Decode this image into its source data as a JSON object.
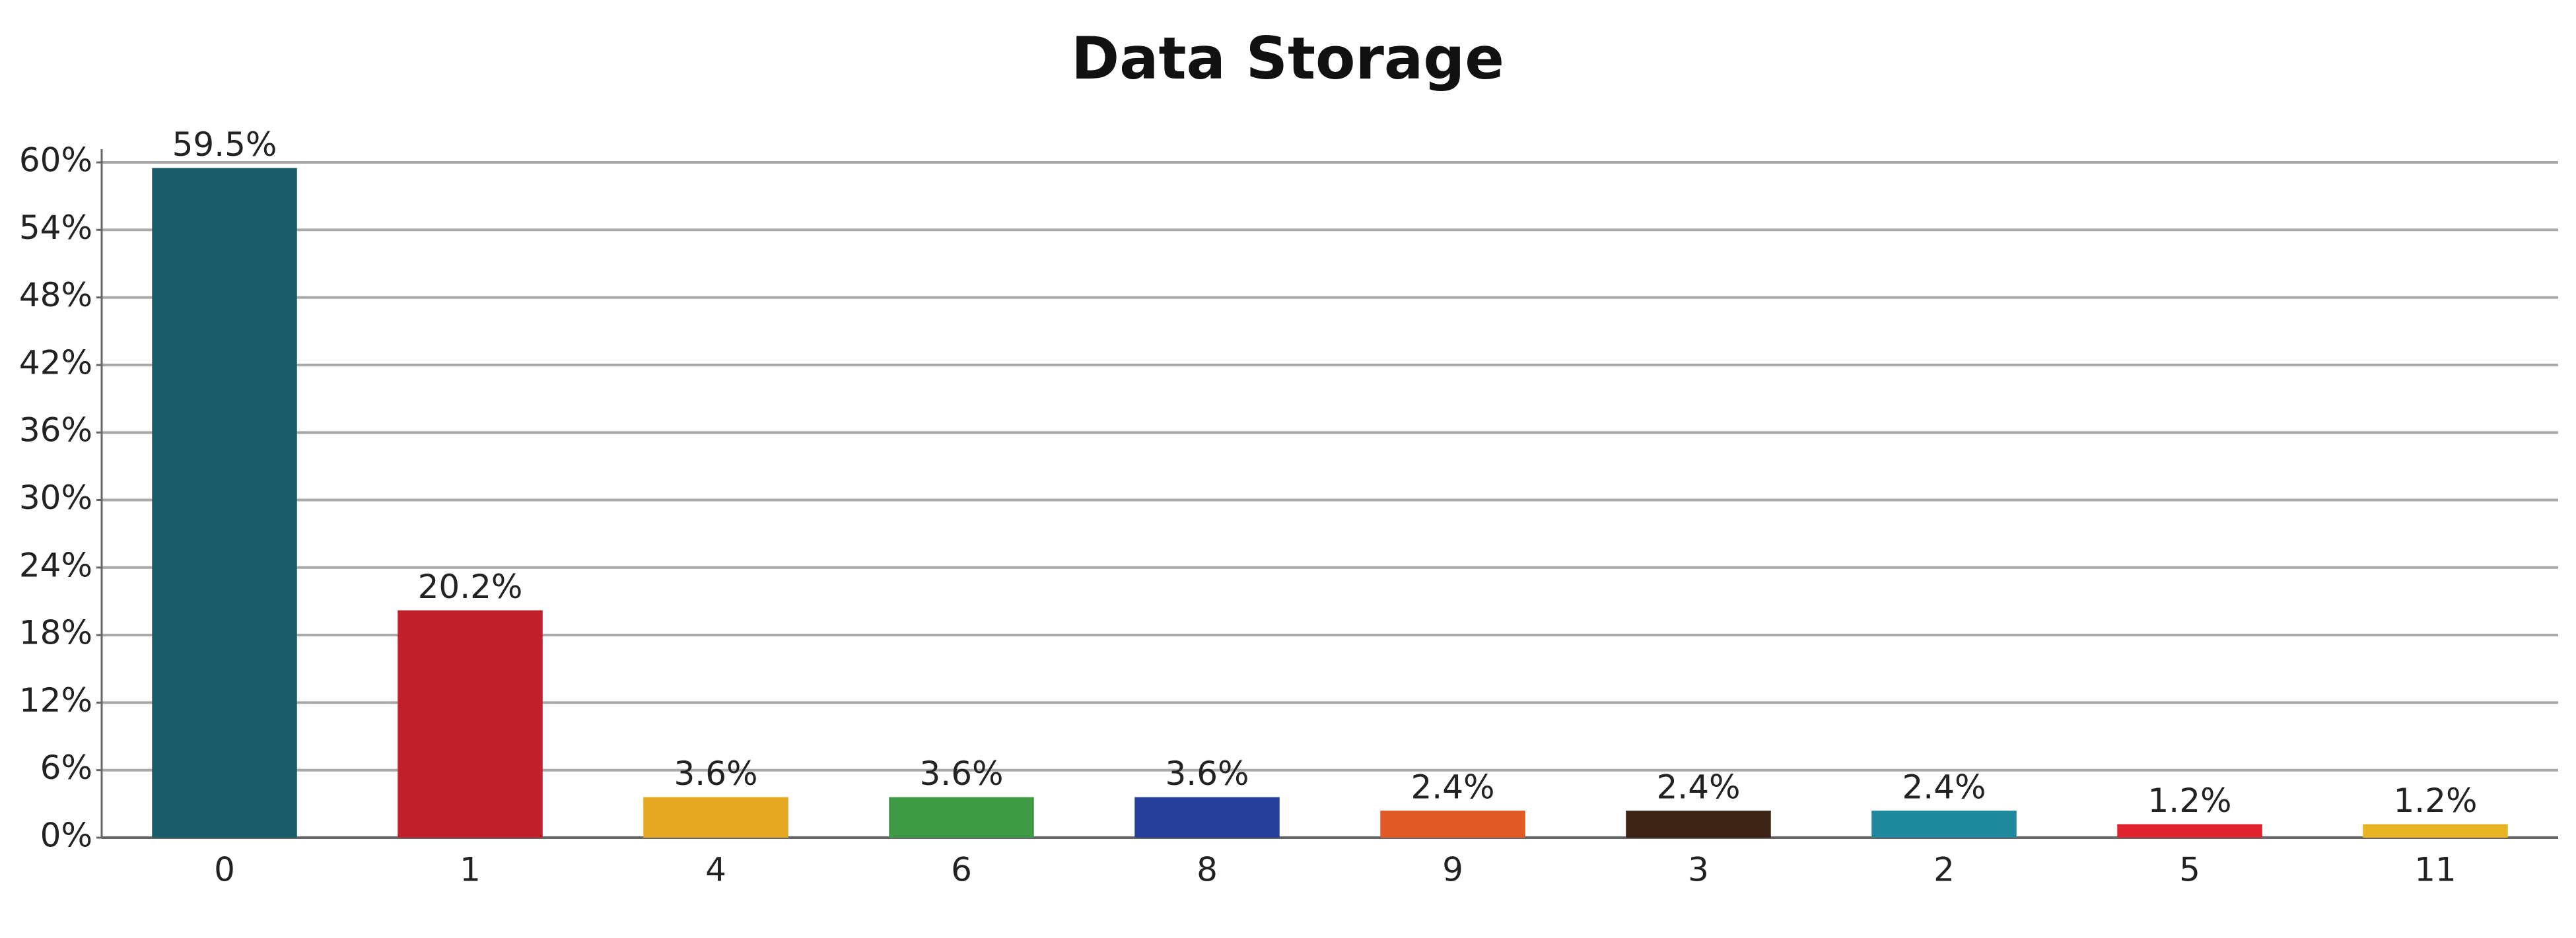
{
  "chart_data": {
    "type": "bar",
    "title": "Data Storage",
    "categories": [
      "0",
      "1",
      "4",
      "6",
      "8",
      "9",
      "3",
      "2",
      "5",
      "11"
    ],
    "values": [
      59.5,
      20.2,
      3.6,
      3.6,
      3.6,
      2.4,
      2.4,
      2.4,
      1.2,
      1.2
    ],
    "value_labels": [
      "59.5%",
      "20.2%",
      "3.6%",
      "3.6%",
      "3.6%",
      "2.4%",
      "2.4%",
      "2.4%",
      "1.2%",
      "1.2%"
    ],
    "colors": [
      "#1b5c6b",
      "#c0202a",
      "#e6a820",
      "#3f9a45",
      "#263f9a",
      "#e15a26",
      "#3d2314",
      "#1f8a9e",
      "#e0222e",
      "#e8b423"
    ],
    "ylim": [
      0,
      60
    ],
    "yticks": [
      {
        "value": 0,
        "label": "0%"
      },
      {
        "value": 6,
        "label": "6%"
      },
      {
        "value": 12,
        "label": "12%"
      },
      {
        "value": 18,
        "label": "18%"
      },
      {
        "value": 24,
        "label": "24%"
      },
      {
        "value": 30,
        "label": "30%"
      },
      {
        "value": 36,
        "label": "36%"
      },
      {
        "value": 42,
        "label": "42%"
      },
      {
        "value": 48,
        "label": "48%"
      },
      {
        "value": 54,
        "label": "54%"
      },
      {
        "value": 60,
        "label": "60%"
      }
    ],
    "grid": true
  }
}
